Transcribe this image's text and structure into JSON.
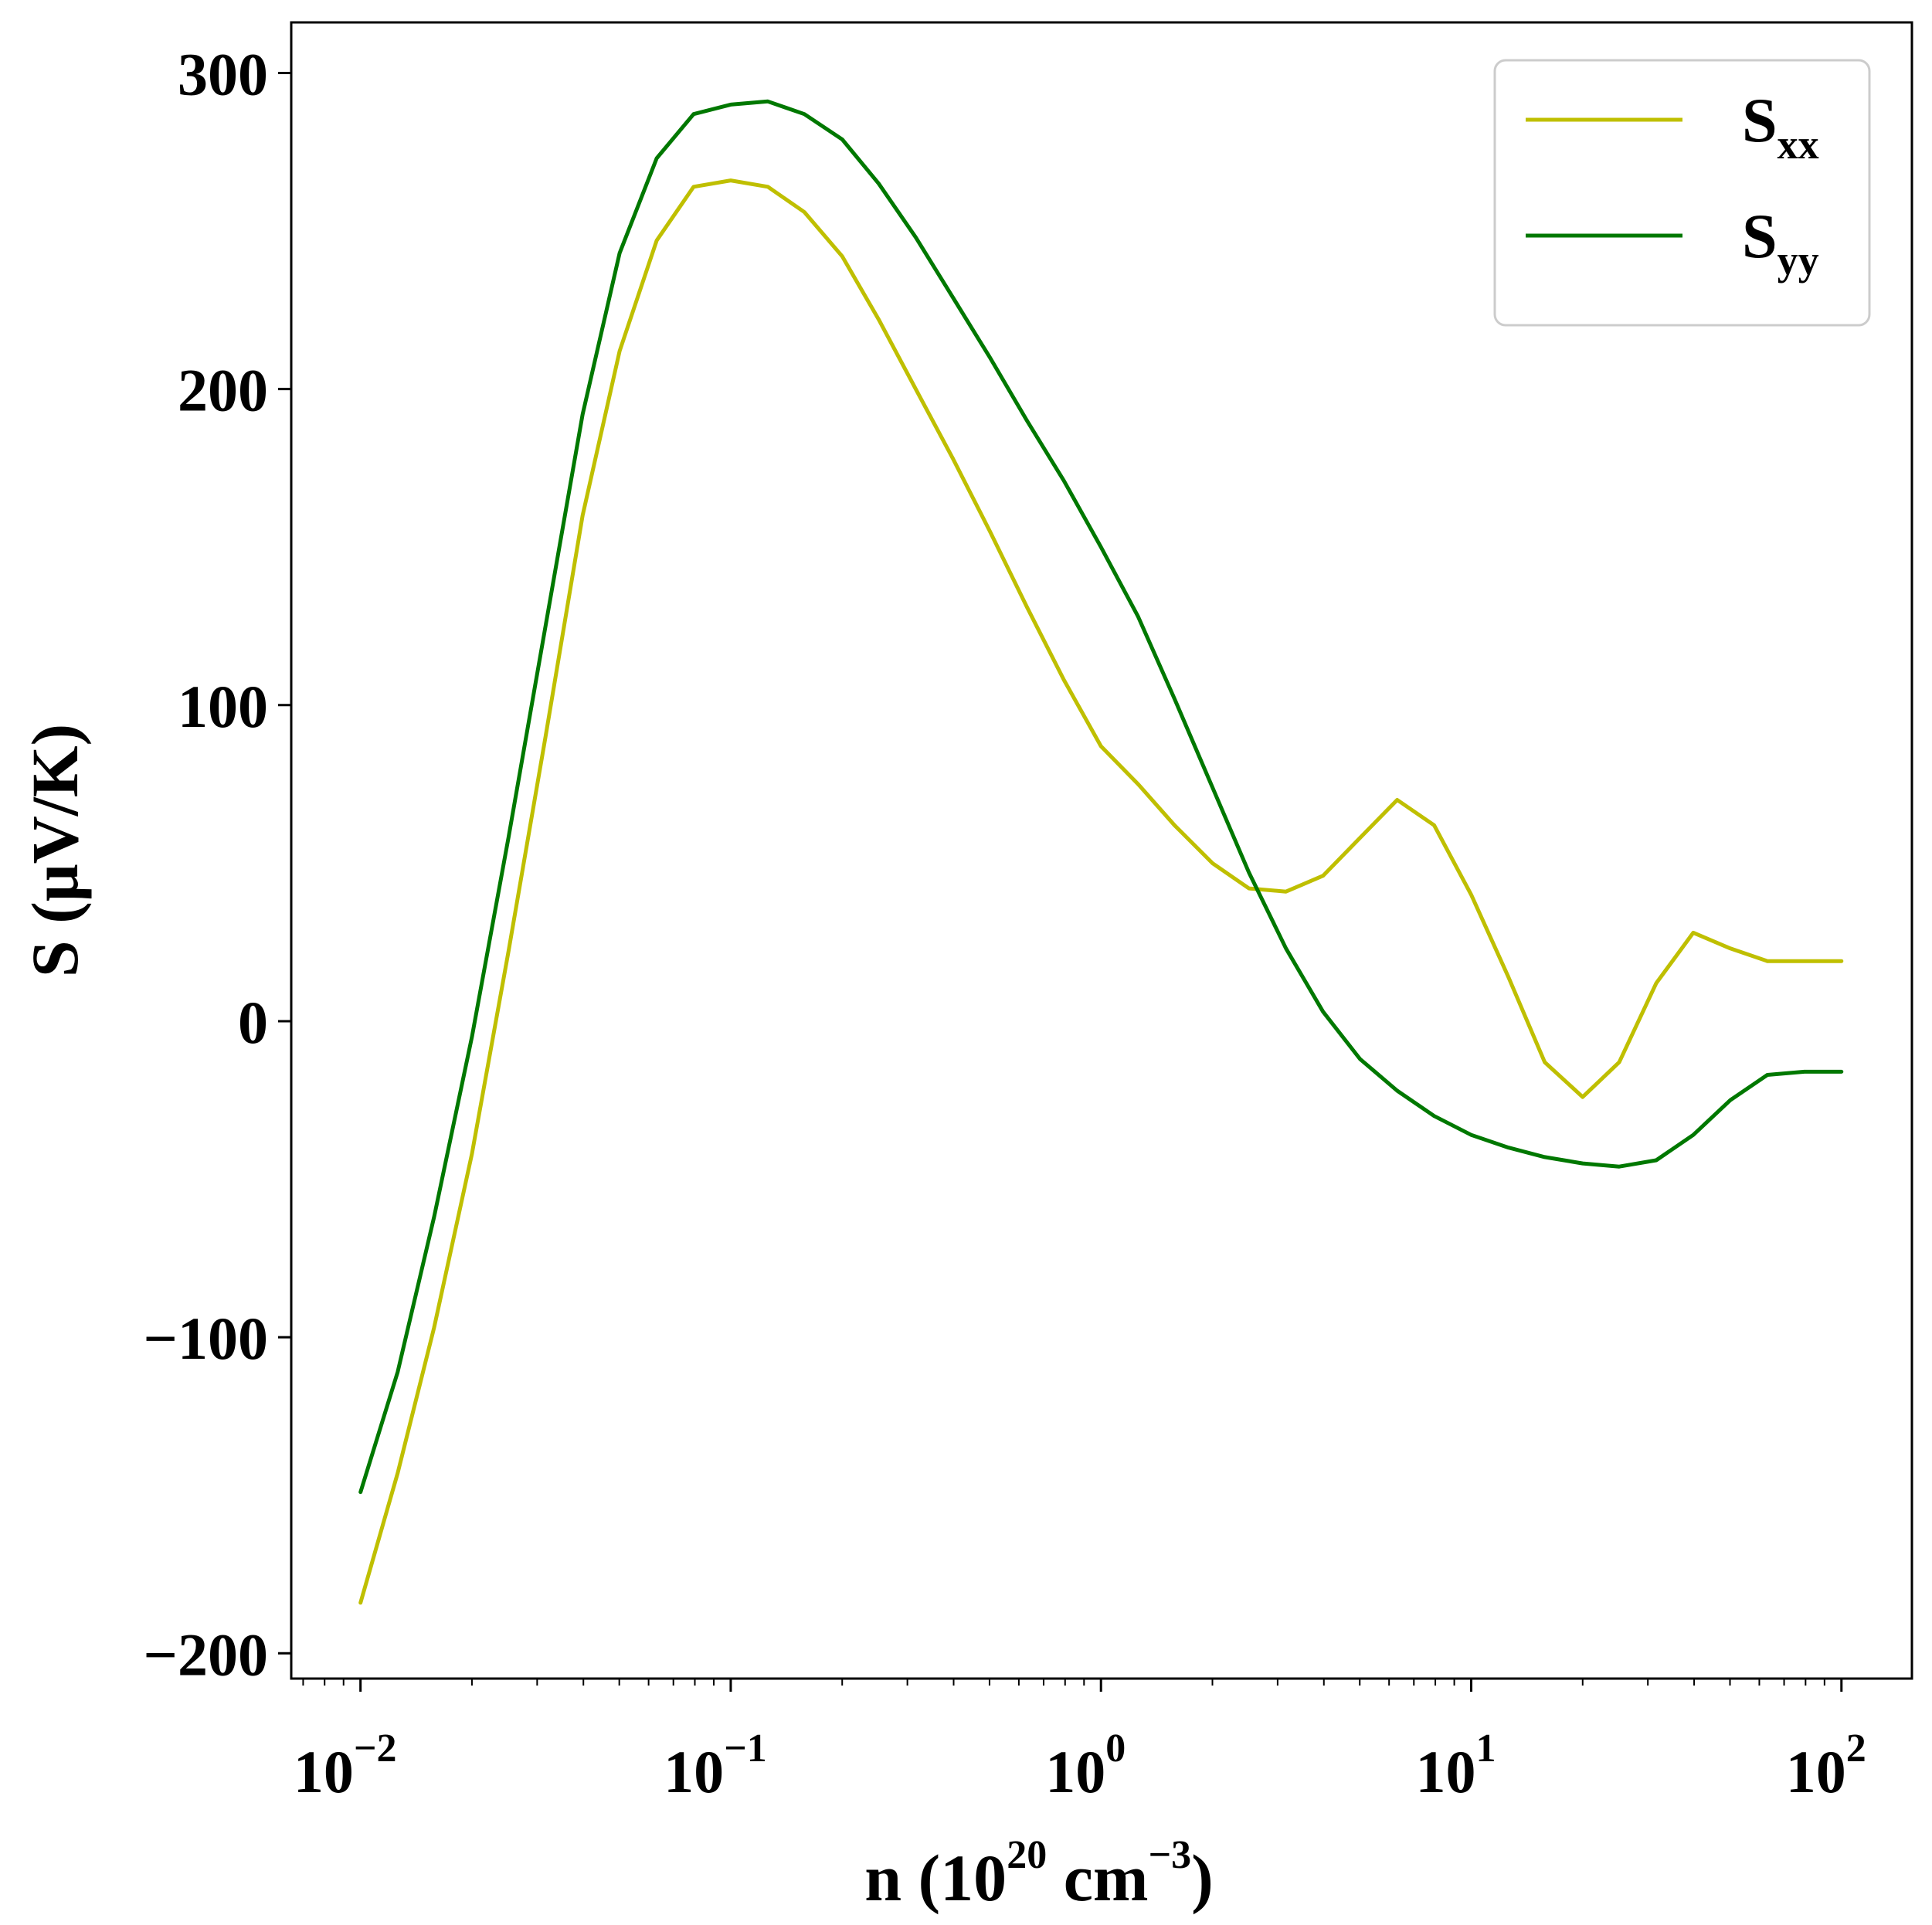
{
  "chart_data": {
    "type": "line",
    "title": "",
    "xscale": "log",
    "xlim": [
      0.0065,
      155
    ],
    "ylim": [
      -208,
      316
    ],
    "xlabel": {
      "prefix": "n (10",
      "sup1": "20",
      "mid": " cm",
      "sup2": "−3",
      "suffix": ")"
    },
    "ylabel": "S (μV/K)",
    "xticks": [
      {
        "value": 0.01,
        "base": "10",
        "exp": "−2"
      },
      {
        "value": 0.1,
        "base": "10",
        "exp": "−1"
      },
      {
        "value": 1,
        "base": "10",
        "exp": "0"
      },
      {
        "value": 10,
        "base": "10",
        "exp": "1"
      },
      {
        "value": 100,
        "base": "10",
        "exp": "2"
      }
    ],
    "yticks": [
      {
        "value": -200,
        "label": "−200"
      },
      {
        "value": -100,
        "label": "−100"
      },
      {
        "value": 0,
        "label": "0"
      },
      {
        "value": 100,
        "label": "100"
      },
      {
        "value": 200,
        "label": "200"
      },
      {
        "value": 300,
        "label": "300"
      }
    ],
    "legend_position": "upper-right",
    "series": [
      {
        "name": "S",
        "subscript": "xx",
        "color": "#bfbf00",
        "x": [
          0.01,
          0.0126,
          0.0158,
          0.02,
          0.0251,
          0.0316,
          0.0398,
          0.0501,
          0.0631,
          0.0794,
          0.1,
          0.126,
          0.158,
          0.2,
          0.251,
          0.316,
          0.398,
          0.501,
          0.631,
          0.794,
          1.0,
          1.26,
          1.58,
          2.0,
          2.51,
          3.16,
          3.98,
          5.01,
          6.31,
          7.94,
          10.0,
          12.6,
          15.8,
          20.0,
          25.1,
          31.6,
          39.8,
          50.1,
          63.1,
          79.4,
          100
        ],
        "values": [
          -184,
          -143,
          -97,
          -42,
          22,
          90,
          160,
          212,
          247,
          264,
          266,
          264,
          256,
          242,
          222,
          200,
          178,
          155,
          131,
          108,
          87,
          75,
          62,
          50,
          42,
          41,
          46,
          58,
          70,
          62,
          40,
          14,
          -13,
          -24,
          -13,
          12,
          28,
          23,
          19,
          19,
          19
        ]
      },
      {
        "name": "S",
        "subscript": "yy",
        "color": "#007800",
        "x": [
          0.01,
          0.0126,
          0.0158,
          0.02,
          0.0251,
          0.0316,
          0.0398,
          0.0501,
          0.0631,
          0.0794,
          0.1,
          0.126,
          0.158,
          0.2,
          0.251,
          0.316,
          0.398,
          0.501,
          0.631,
          0.794,
          1.0,
          1.26,
          1.58,
          2.0,
          2.51,
          3.16,
          3.98,
          5.01,
          6.31,
          7.94,
          10.0,
          12.6,
          15.8,
          20.0,
          25.1,
          31.6,
          39.8,
          50.1,
          63.1,
          79.4,
          100
        ],
        "values": [
          -149,
          -111,
          -62,
          -5,
          58,
          125,
          192,
          243,
          273,
          287,
          290,
          291,
          287,
          279,
          265,
          248,
          229,
          210,
          190,
          171,
          150,
          128,
          102,
          74,
          47,
          23,
          3,
          -12,
          -22,
          -30,
          -36,
          -40,
          -43,
          -45,
          -46,
          -44,
          -36,
          -25,
          -17,
          -16,
          -16
        ]
      }
    ]
  }
}
